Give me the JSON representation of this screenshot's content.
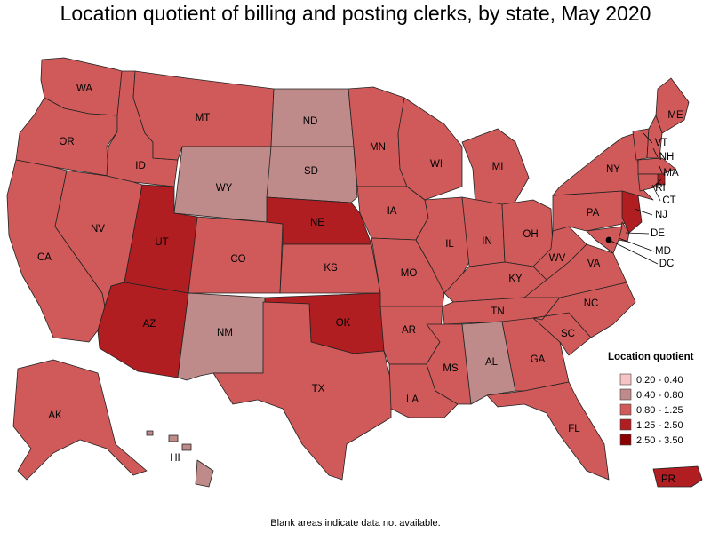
{
  "title": "Location quotient of billing and posting clerks, by state, May 2020",
  "footnote": "Blank areas indicate data not available.",
  "legend": {
    "title": "Location quotient",
    "items": [
      {
        "label": "0.20 - 0.40",
        "color": "#f6c4c4"
      },
      {
        "label": "0.40 - 0.80",
        "color": "#bf8a8a"
      },
      {
        "label": "0.80 - 1.25",
        "color": "#d05a5a"
      },
      {
        "label": "1.25 - 2.50",
        "color": "#b01e22"
      },
      {
        "label": "2.50 - 3.50",
        "color": "#8b0000"
      }
    ]
  },
  "states": [
    {
      "abbr": "WA",
      "cls": 2
    },
    {
      "abbr": "OR",
      "cls": 2
    },
    {
      "abbr": "CA",
      "cls": 2
    },
    {
      "abbr": "ID",
      "cls": 2
    },
    {
      "abbr": "NV",
      "cls": 2
    },
    {
      "abbr": "MT",
      "cls": 2
    },
    {
      "abbr": "WY",
      "cls": 1
    },
    {
      "abbr": "UT",
      "cls": 3
    },
    {
      "abbr": "AZ",
      "cls": 3
    },
    {
      "abbr": "CO",
      "cls": 2
    },
    {
      "abbr": "NM",
      "cls": 1
    },
    {
      "abbr": "ND",
      "cls": 1
    },
    {
      "abbr": "SD",
      "cls": 1
    },
    {
      "abbr": "NE",
      "cls": 3
    },
    {
      "abbr": "KS",
      "cls": 2
    },
    {
      "abbr": "OK",
      "cls": 3
    },
    {
      "abbr": "TX",
      "cls": 2
    },
    {
      "abbr": "MN",
      "cls": 2
    },
    {
      "abbr": "IA",
      "cls": 2
    },
    {
      "abbr": "MO",
      "cls": 2
    },
    {
      "abbr": "AR",
      "cls": 2
    },
    {
      "abbr": "LA",
      "cls": 2
    },
    {
      "abbr": "WI",
      "cls": 2
    },
    {
      "abbr": "IL",
      "cls": 2
    },
    {
      "abbr": "MI",
      "cls": 2
    },
    {
      "abbr": "IN",
      "cls": 2
    },
    {
      "abbr": "OH",
      "cls": 2
    },
    {
      "abbr": "KY",
      "cls": 2
    },
    {
      "abbr": "TN",
      "cls": 2
    },
    {
      "abbr": "MS",
      "cls": 2
    },
    {
      "abbr": "AL",
      "cls": 1
    },
    {
      "abbr": "GA",
      "cls": 2
    },
    {
      "abbr": "FL",
      "cls": 2
    },
    {
      "abbr": "SC",
      "cls": 2
    },
    {
      "abbr": "NC",
      "cls": 2
    },
    {
      "abbr": "VA",
      "cls": 2
    },
    {
      "abbr": "WV",
      "cls": 2
    },
    {
      "abbr": "PA",
      "cls": 2
    },
    {
      "abbr": "NY",
      "cls": 2
    },
    {
      "abbr": "ME",
      "cls": 2
    },
    {
      "abbr": "VT",
      "cls": 2
    },
    {
      "abbr": "NH",
      "cls": 2
    },
    {
      "abbr": "MA",
      "cls": 2
    },
    {
      "abbr": "RI",
      "cls": 3
    },
    {
      "abbr": "CT",
      "cls": 2
    },
    {
      "abbr": "NJ",
      "cls": 3
    },
    {
      "abbr": "DE",
      "cls": 2
    },
    {
      "abbr": "MD",
      "cls": 2
    },
    {
      "abbr": "DC",
      "cls": 2
    },
    {
      "abbr": "AK",
      "cls": 2
    },
    {
      "abbr": "HI",
      "cls": 1
    },
    {
      "abbr": "PR",
      "cls": 3
    }
  ]
}
